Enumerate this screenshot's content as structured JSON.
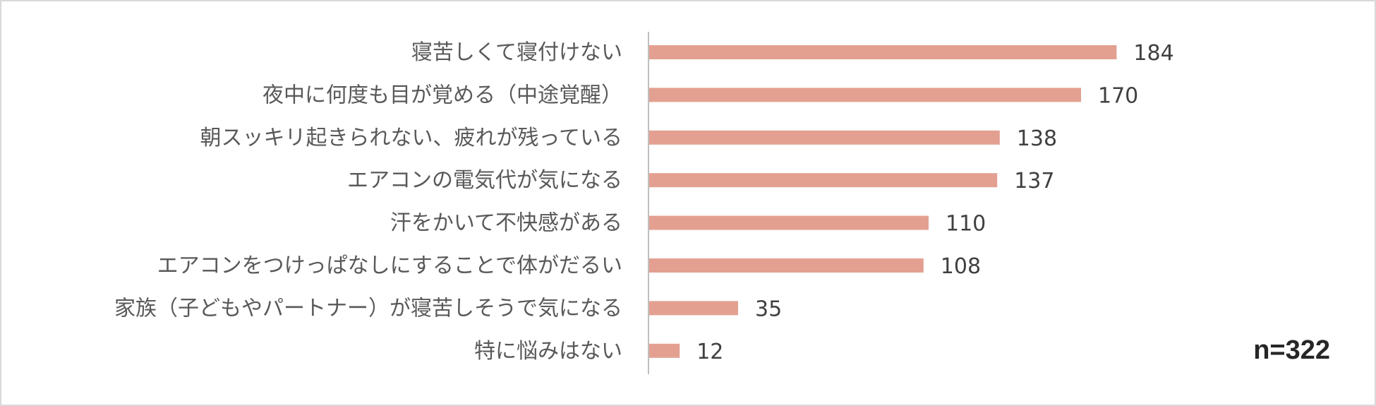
{
  "chart_data": {
    "type": "bar",
    "orientation": "horizontal",
    "categories": [
      "寝苦しくて寝付けない",
      "夜中に何度も目が覚める（中途覚醒）",
      "朝スッキリ起きられない、疲れが残っている",
      "エアコンの電気代が気になる",
      "汗をかいて不快感がある",
      "エアコンをつけっぱなしにすることで体がだるい",
      "家族（子どもやパートナー）が寝苦しそうで気になる",
      "特に悩みはない"
    ],
    "values": [
      184,
      170,
      138,
      137,
      110,
      108,
      35,
      12
    ],
    "title": "",
    "xlabel": "",
    "ylabel": "",
    "xlim": [
      0,
      190
    ],
    "grid": false,
    "bar_color": "#e3a091",
    "axis_color": "#bfbfbf",
    "annotation": "n=322"
  }
}
